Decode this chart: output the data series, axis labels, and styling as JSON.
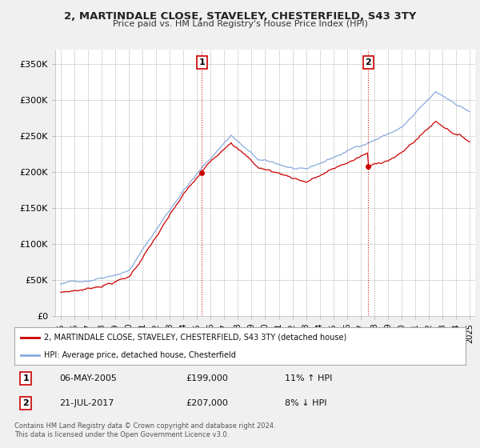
{
  "title": "2, MARTINDALE CLOSE, STAVELEY, CHESTERFIELD, S43 3TY",
  "subtitle": "Price paid vs. HM Land Registry's House Price Index (HPI)",
  "ylim": [
    0,
    370000
  ],
  "yticks": [
    0,
    50000,
    100000,
    150000,
    200000,
    250000,
    300000,
    350000
  ],
  "ytick_labels": [
    "£0",
    "£50K",
    "£100K",
    "£150K",
    "£200K",
    "£250K",
    "£300K",
    "£350K"
  ],
  "purchase1_date": "06-MAY-2005",
  "purchase1_price": 199000,
  "purchase1_hpi": "11% ↑ HPI",
  "purchase2_date": "21-JUL-2017",
  "purchase2_price": 207000,
  "purchase2_hpi": "8% ↓ HPI",
  "legend_line1": "2, MARTINDALE CLOSE, STAVELEY, CHESTERFIELD, S43 3TY (detached house)",
  "legend_line2": "HPI: Average price, detached house, Chesterfield",
  "footer": "Contains HM Land Registry data © Crown copyright and database right 2024.\nThis data is licensed under the Open Government Licence v3.0.",
  "line_color_property": "#cc0000",
  "line_color_hpi": "#88aadd",
  "background_color": "#f0f0f0",
  "plot_bg_color": "#ffffff",
  "grid_color": "#cccccc"
}
